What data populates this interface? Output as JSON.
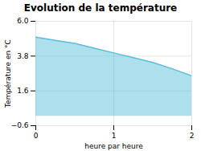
{
  "chart_data": {
    "type": "area",
    "title": "Evolution de la température",
    "x_label": "heure par heure",
    "y_label": "Température en °C",
    "x": [
      0,
      0.25,
      0.5,
      0.75,
      1.0,
      1.25,
      1.5,
      1.75,
      2.0
    ],
    "values": [
      5.0,
      4.8,
      4.6,
      4.3,
      4.0,
      3.7,
      3.4,
      3.0,
      2.55
    ],
    "color": "#5bbfdb",
    "xlim": [
      0,
      2
    ],
    "xticks": [
      0,
      1,
      2
    ],
    "ylim": [
      -0.6,
      6.0
    ],
    "yticks": [
      -0.6,
      1.6,
      3.8,
      {
        "value": 6.0,
        "label": "6.0"
      }
    ],
    "grid": true
  }
}
